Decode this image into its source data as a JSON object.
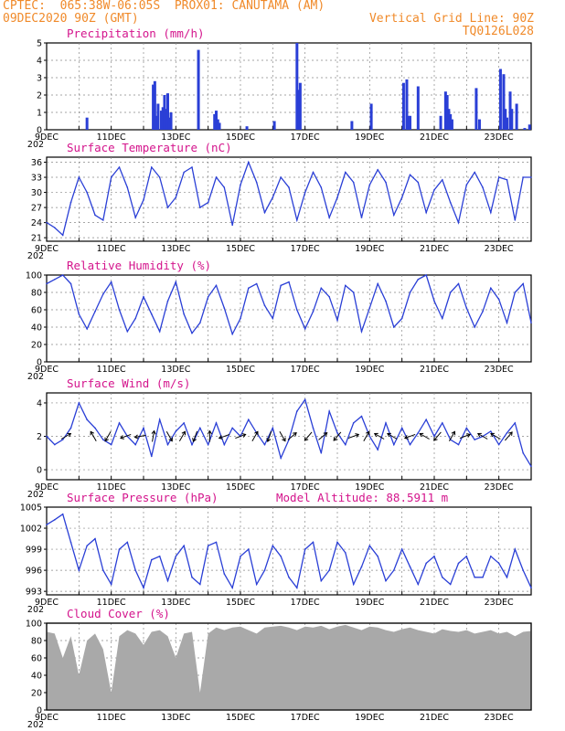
{
  "header": {
    "line1_left": "CPTEC:  065:38W-06:05S  PROX01: CANUTAMA (AM)",
    "line2_left": "09DEC2020 90Z (GMT)",
    "line2_right": "Vertical Grid Line: 90Z",
    "line3_right": "TQ0126L028"
  },
  "colors": {
    "line": "#2a3fd6",
    "bar": "#2a3fd6",
    "cloud": "#a9a9a9",
    "title": "#d4148c",
    "header": "#f08a2a"
  },
  "x_axis": {
    "start": "09DEC2020 00Z",
    "end": "24DEC2020 00Z",
    "tick_labels": [
      "9DEC",
      "11DEC",
      "13DEC",
      "15DEC",
      "17DEC",
      "19DEC",
      "21DEC",
      "23DEC"
    ],
    "year_stub": "202"
  },
  "chart_data": [
    {
      "id": "precip",
      "type": "bar",
      "title": "Precipitation (mm/h)",
      "ylim": [
        0,
        5
      ],
      "yticks": [
        0,
        1,
        2,
        3,
        4,
        5
      ],
      "x_days": [
        1.25,
        3.3,
        3.35,
        3.4,
        3.45,
        3.55,
        3.6,
        3.65,
        3.7,
        3.75,
        3.8,
        3.85,
        4.7,
        5.2,
        5.25,
        5.3,
        5.35,
        6.2,
        7.05,
        7.75,
        7.8,
        7.85,
        9.45,
        10.05,
        11.05,
        11.15,
        11.2,
        11.25,
        11.5,
        12.2,
        12.35,
        12.4,
        12.45,
        12.5,
        12.55,
        13.3,
        13.4,
        14.05,
        14.15,
        14.2,
        14.25,
        14.35,
        14.4,
        14.55,
        14.8,
        14.95
      ],
      "values": [
        0.7,
        2.6,
        2.8,
        0.8,
        1.5,
        1.1,
        1.3,
        2.0,
        1.2,
        2.1,
        0.7,
        1.0,
        4.6,
        0.9,
        1.1,
        0.6,
        0.4,
        0.2,
        0.5,
        5.0,
        2.3,
        2.7,
        0.5,
        1.5,
        2.7,
        2.9,
        0.8,
        0.8,
        2.5,
        0.8,
        2.2,
        2.0,
        1.2,
        0.9,
        0.6,
        2.4,
        0.6,
        3.5,
        3.2,
        1.2,
        0.7,
        2.2,
        1.2,
        1.5,
        0.1,
        0.3
      ]
    },
    {
      "id": "temp",
      "type": "line",
      "title": "Surface Temperature (nC)",
      "ylim": [
        20.3,
        37
      ],
      "yticks": [
        21,
        24,
        27,
        30,
        33,
        36
      ],
      "x_days": [
        0,
        0.25,
        0.5,
        0.75,
        1,
        1.25,
        1.5,
        1.75,
        2,
        2.25,
        2.5,
        2.75,
        3,
        3.25,
        3.5,
        3.75,
        4,
        4.25,
        4.5,
        4.75,
        5,
        5.25,
        5.5,
        5.75,
        6,
        6.25,
        6.5,
        6.75,
        7,
        7.25,
        7.5,
        7.75,
        8,
        8.25,
        8.5,
        8.75,
        9,
        9.25,
        9.5,
        9.75,
        10,
        10.25,
        10.5,
        10.75,
        11,
        11.25,
        11.5,
        11.75,
        12,
        12.25,
        12.5,
        12.75,
        13,
        13.25,
        13.5,
        13.75,
        14,
        14.25,
        14.5,
        14.75,
        15
      ],
      "values": [
        24,
        23,
        21.5,
        28,
        33,
        30,
        25.5,
        24.5,
        33,
        35,
        31,
        25,
        28.5,
        35,
        33,
        27,
        29,
        34,
        35,
        27,
        28,
        33,
        31,
        23.5,
        31.5,
        36,
        32,
        26,
        29,
        33,
        31,
        24.5,
        30,
        34,
        31,
        25,
        29,
        34,
        32,
        25,
        31.5,
        34.5,
        32,
        25.5,
        29,
        33.5,
        32,
        26,
        30.5,
        32.5,
        28,
        24,
        31.5,
        34,
        31,
        26,
        33,
        32.5,
        24.5,
        33,
        33
      ]
    },
    {
      "id": "rh",
      "type": "line",
      "title": "Relative Humidity (%)",
      "ylim": [
        0,
        100
      ],
      "yticks": [
        0,
        20,
        40,
        60,
        80,
        100
      ],
      "x_days": [
        0,
        0.25,
        0.5,
        0.75,
        1,
        1.25,
        1.5,
        1.75,
        2,
        2.25,
        2.5,
        2.75,
        3,
        3.25,
        3.5,
        3.75,
        4,
        4.25,
        4.5,
        4.75,
        5,
        5.25,
        5.5,
        5.75,
        6,
        6.25,
        6.5,
        6.75,
        7,
        7.25,
        7.5,
        7.75,
        8,
        8.25,
        8.5,
        8.75,
        9,
        9.25,
        9.5,
        9.75,
        10,
        10.25,
        10.5,
        10.75,
        11,
        11.25,
        11.5,
        11.75,
        12,
        12.25,
        12.5,
        12.75,
        13,
        13.25,
        13.5,
        13.75,
        14,
        14.25,
        14.5,
        14.75,
        15
      ],
      "values": [
        90,
        95,
        100,
        90,
        55,
        38,
        58,
        78,
        92,
        60,
        35,
        50,
        75,
        55,
        35,
        70,
        92,
        55,
        33,
        45,
        75,
        88,
        62,
        32,
        50,
        85,
        90,
        65,
        50,
        88,
        92,
        60,
        38,
        58,
        85,
        75,
        48,
        88,
        80,
        35,
        62,
        90,
        70,
        40,
        50,
        80,
        95,
        100,
        70,
        50,
        80,
        90,
        62,
        40,
        58,
        85,
        72,
        45,
        80,
        90,
        45
      ]
    },
    {
      "id": "wind",
      "type": "line",
      "title": "Surface Wind (m/s)",
      "ylim": [
        -0.6,
        4.6
      ],
      "yticks": [
        0,
        2,
        4
      ],
      "x_days": [
        0,
        0.25,
        0.5,
        0.75,
        1,
        1.25,
        1.5,
        1.75,
        2,
        2.25,
        2.5,
        2.75,
        3,
        3.25,
        3.5,
        3.75,
        4,
        4.25,
        4.5,
        4.75,
        5,
        5.25,
        5.5,
        5.75,
        6,
        6.25,
        6.5,
        6.75,
        7,
        7.25,
        7.5,
        7.75,
        8,
        8.25,
        8.5,
        8.75,
        9,
        9.25,
        9.5,
        9.75,
        10,
        10.25,
        10.5,
        10.75,
        11,
        11.25,
        11.5,
        11.75,
        12,
        12.25,
        12.5,
        12.75,
        13,
        13.25,
        13.5,
        13.75,
        14,
        14.25,
        14.5,
        14.75,
        15
      ],
      "values": [
        2,
        1.5,
        1.8,
        2.5,
        4,
        3,
        2.5,
        1.8,
        1.5,
        2.8,
        2,
        1.5,
        2.5,
        0.8,
        3,
        1.5,
        2.3,
        2.8,
        1.5,
        2.5,
        1.5,
        2.8,
        1.5,
        2.5,
        2,
        3,
        2.2,
        1.5,
        2.5,
        0.7,
        1.8,
        3.5,
        4.2,
        2.5,
        1,
        3.5,
        2.2,
        1.5,
        2.8,
        3.2,
        2,
        1.2,
        2.8,
        1.5,
        2.5,
        1.5,
        2.2,
        3,
        2,
        2.8,
        1.8,
        1.5,
        2.5,
        1.8,
        2,
        2.3,
        1.5,
        2.2,
        2.8,
        1,
        0.2
      ],
      "arrows_x_days": [
        0.6,
        1.45,
        1.9,
        2.45,
        2.9,
        3.3,
        3.8,
        4.2,
        4.6,
        5.05,
        5.5,
        6.0,
        6.45,
        6.9,
        7.3,
        7.6,
        8.1,
        8.55,
        9.0,
        9.5,
        9.9,
        10.3,
        10.7,
        11.25,
        11.7,
        12.1,
        12.55,
        12.95,
        13.5,
        13.9,
        14.3
      ],
      "arrows_angle_deg": [
        30,
        120,
        240,
        200,
        190,
        80,
        300,
        60,
        250,
        90,
        200,
        20,
        60,
        250,
        300,
        40,
        230,
        40,
        230,
        20,
        60,
        150,
        150,
        200,
        150,
        230,
        60,
        20,
        150,
        150,
        50
      ]
    },
    {
      "id": "pres",
      "type": "line",
      "title": "Surface Pressure (hPa)",
      "annotation": "Model Altitude: 88.5911 m",
      "ylim": [
        992.5,
        1005
      ],
      "yticks": [
        993,
        996,
        999,
        1002,
        1005
      ],
      "x_days": [
        0,
        0.25,
        0.5,
        0.75,
        1,
        1.25,
        1.5,
        1.75,
        2,
        2.25,
        2.5,
        2.75,
        3,
        3.25,
        3.5,
        3.75,
        4,
        4.25,
        4.5,
        4.75,
        5,
        5.25,
        5.5,
        5.75,
        6,
        6.25,
        6.5,
        6.75,
        7,
        7.25,
        7.5,
        7.75,
        8,
        8.25,
        8.5,
        8.75,
        9,
        9.25,
        9.5,
        9.75,
        10,
        10.25,
        10.5,
        10.75,
        11,
        11.25,
        11.5,
        11.75,
        12,
        12.25,
        12.5,
        12.75,
        13,
        13.25,
        13.5,
        13.75,
        14,
        14.25,
        14.5,
        14.75,
        15
      ],
      "values": [
        1002.5,
        1003.2,
        1004,
        1000,
        996,
        999.5,
        1000.5,
        996,
        994,
        999,
        1000,
        996,
        993.5,
        997.5,
        998,
        994.5,
        998,
        999.5,
        995,
        994,
        999.5,
        1000,
        995.5,
        993.5,
        998,
        999,
        994,
        996,
        999.5,
        998,
        995,
        993.5,
        999,
        1000,
        994.5,
        996,
        1000,
        998.5,
        994,
        996.5,
        999.5,
        998,
        994.5,
        996,
        999,
        996.5,
        994,
        997,
        998,
        995,
        994,
        997,
        998,
        995,
        995,
        998,
        997,
        995,
        999,
        996,
        993.5
      ]
    },
    {
      "id": "cloud",
      "type": "area",
      "title": "Cloud Cover (%)",
      "ylim": [
        0,
        100
      ],
      "yticks": [
        0,
        20,
        40,
        60,
        80,
        100
      ],
      "x_days": [
        0,
        0.25,
        0.5,
        0.75,
        1,
        1.25,
        1.5,
        1.75,
        2,
        2.25,
        2.5,
        2.75,
        3,
        3.25,
        3.5,
        3.75,
        4,
        4.25,
        4.5,
        4.75,
        5,
        5.25,
        5.5,
        5.75,
        6,
        6.25,
        6.5,
        6.75,
        7,
        7.25,
        7.5,
        7.75,
        8,
        8.25,
        8.5,
        8.75,
        9,
        9.25,
        9.5,
        9.75,
        10,
        10.25,
        10.5,
        10.75,
        11,
        11.25,
        11.5,
        11.75,
        12,
        12.25,
        12.5,
        12.75,
        13,
        13.25,
        13.5,
        13.75,
        14,
        14.25,
        14.5,
        14.75,
        15
      ],
      "values": [
        90,
        88,
        60,
        85,
        40,
        80,
        88,
        70,
        20,
        85,
        92,
        88,
        75,
        90,
        92,
        85,
        60,
        88,
        90,
        20,
        88,
        95,
        92,
        95,
        96,
        92,
        88,
        95,
        96,
        97,
        95,
        92,
        96,
        95,
        97,
        93,
        96,
        98,
        95,
        92,
        96,
        95,
        92,
        90,
        93,
        95,
        92,
        90,
        88,
        93,
        91,
        90,
        92,
        88,
        90,
        92,
        88,
        90,
        85,
        90,
        91
      ]
    }
  ]
}
